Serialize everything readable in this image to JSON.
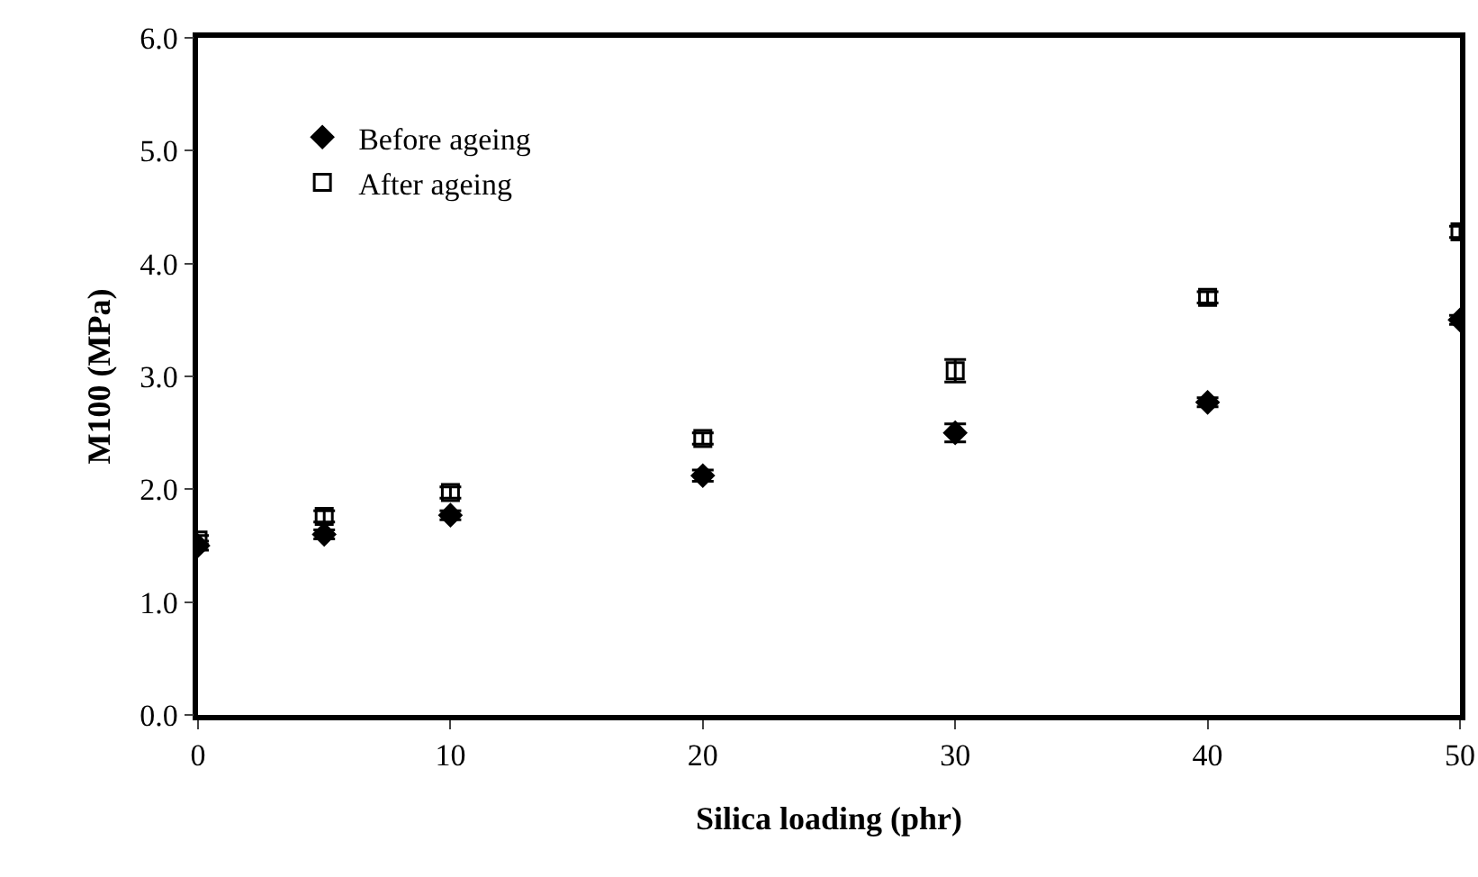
{
  "chart_data": {
    "type": "scatter",
    "xlabel": "Silica loading (phr)",
    "ylabel": "M100 (MPa)",
    "x": [
      0,
      5,
      10,
      20,
      30,
      40,
      50
    ],
    "series": [
      {
        "name": "Before ageing",
        "color": "#000000",
        "marker": "diamond",
        "values": [
          1.5,
          1.6,
          1.77,
          2.12,
          2.5,
          2.77,
          3.5
        ],
        "errors": [
          0.04,
          0.04,
          0.04,
          0.05,
          0.08,
          0.04,
          0.04
        ]
      },
      {
        "name": "After ageing",
        "color": "#000000",
        "marker": "square-open",
        "values": [
          1.55,
          1.76,
          1.97,
          2.45,
          3.05,
          3.7,
          4.28
        ],
        "errors": [
          0.04,
          0.05,
          0.05,
          0.05,
          0.1,
          0.05,
          0.05
        ]
      }
    ],
    "xlim": [
      0,
      50
    ],
    "xticks": [
      0,
      10,
      20,
      30,
      40,
      50
    ],
    "ylim": [
      0,
      6
    ],
    "yticks": [
      {
        "value": 0,
        "label": "0.0"
      },
      {
        "value": 1,
        "label": "1.0"
      },
      {
        "value": 2,
        "label": "2.0"
      },
      {
        "value": 3,
        "label": "3.0"
      },
      {
        "value": 4,
        "label": "4.0"
      },
      {
        "value": 5,
        "label": "5.0"
      },
      {
        "value": 6,
        "label": "6.0"
      }
    ],
    "grid": false,
    "legend": "top left"
  }
}
